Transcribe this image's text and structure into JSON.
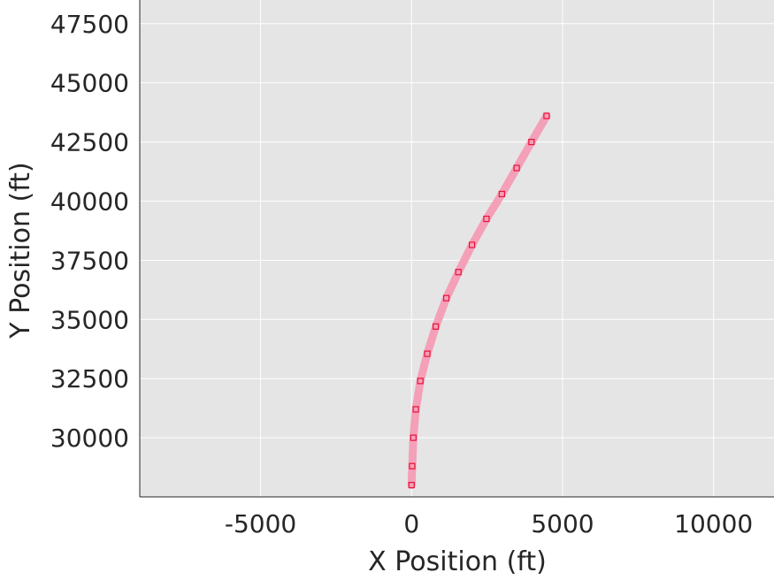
{
  "chart_data": {
    "type": "line",
    "xlabel": "X Position (ft)",
    "ylabel": "Y Position (ft)",
    "xlim": [
      -9000,
      12000
    ],
    "ylim": [
      27500,
      48500
    ],
    "xticks": [
      -5000,
      0,
      5000,
      10000
    ],
    "yticks": [
      30000,
      32500,
      35000,
      37500,
      40000,
      42500,
      45000,
      47500
    ],
    "xtick_labels": [
      "-5000",
      "0",
      "5000",
      "10000"
    ],
    "ytick_labels": [
      "30000",
      "32500",
      "35000",
      "37500",
      "40000",
      "42500",
      "45000",
      "47500"
    ],
    "grid": true,
    "background_color": "#e5e5e5",
    "grid_color": "#ffffff",
    "series": [
      {
        "line_color": "#f4a0b8",
        "marker": "square",
        "marker_color": "#e8113a",
        "x": [
          0,
          20,
          60,
          140,
          290,
          520,
          800,
          1150,
          1550,
          2000,
          2480,
          2990,
          3480,
          3970,
          4470
        ],
        "y": [
          28000,
          28800,
          30000,
          31200,
          32400,
          33550,
          34700,
          35900,
          37000,
          38150,
          39250,
          40300,
          41400,
          42500,
          43600
        ]
      }
    ]
  }
}
